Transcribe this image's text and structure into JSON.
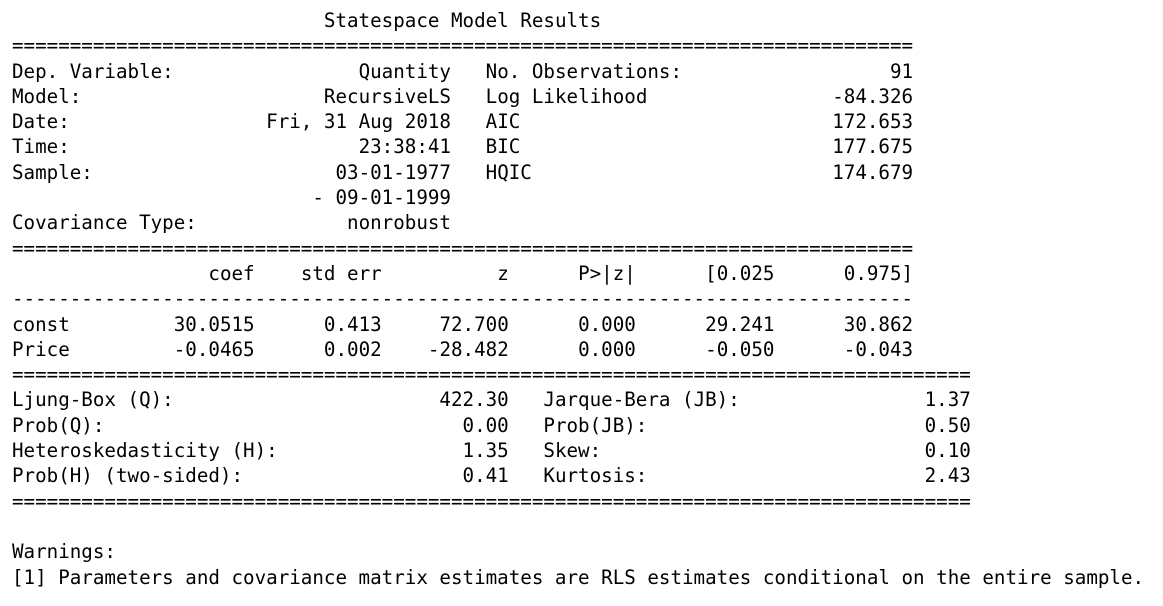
{
  "report": {
    "title": "Statespace Model Results",
    "summary_rows": [
      {
        "left_label": "Dep. Variable:",
        "left_value": "Quantity",
        "right_label": "No. Observations:",
        "right_value": "91"
      },
      {
        "left_label": "Model:",
        "left_value": "RecursiveLS",
        "right_label": "Log Likelihood",
        "right_value": "-84.326"
      },
      {
        "left_label": "Date:",
        "left_value": "Fri, 31 Aug 2018",
        "right_label": "AIC",
        "right_value": "172.653"
      },
      {
        "left_label": "Time:",
        "left_value": "23:38:41",
        "right_label": "BIC",
        "right_value": "177.675"
      },
      {
        "left_label": "Sample:",
        "left_value": "03-01-1977",
        "right_label": "HQIC",
        "right_value": "174.679"
      },
      {
        "left_label": "",
        "left_value": "- 09-01-1999",
        "right_label": "",
        "right_value": ""
      },
      {
        "left_label": "Covariance Type:",
        "left_value": "nonrobust",
        "right_label": "",
        "right_value": ""
      }
    ],
    "coef_headers": [
      "coef",
      "std err",
      "z",
      "P>|z|",
      "[0.025",
      "0.975]"
    ],
    "coef_rows": [
      {
        "name": "const",
        "values": [
          "30.0515",
          "0.413",
          "72.700",
          "0.000",
          "29.241",
          "30.862"
        ]
      },
      {
        "name": "Price",
        "values": [
          "-0.0465",
          "0.002",
          "-28.482",
          "0.000",
          "-0.050",
          "-0.043"
        ]
      }
    ],
    "diagnostic_rows": [
      {
        "left_label": "Ljung-Box (Q):",
        "left_value": "422.30",
        "right_label": "Jarque-Bera (JB):",
        "right_value": "1.37"
      },
      {
        "left_label": "Prob(Q):",
        "left_value": "0.00",
        "right_label": "Prob(JB):",
        "right_value": "0.50"
      },
      {
        "left_label": "Heteroskedasticity (H):",
        "left_value": "1.35",
        "right_label": "Skew:",
        "right_value": "0.10"
      },
      {
        "left_label": "Prob(H) (two-sided):",
        "left_value": "0.41",
        "right_label": "Kurtosis:",
        "right_value": "2.43"
      }
    ],
    "warnings_heading": "Warnings:",
    "warnings": [
      "[1] Parameters and covariance matrix estimates are RLS estimates conditional on the entire sample."
    ]
  }
}
